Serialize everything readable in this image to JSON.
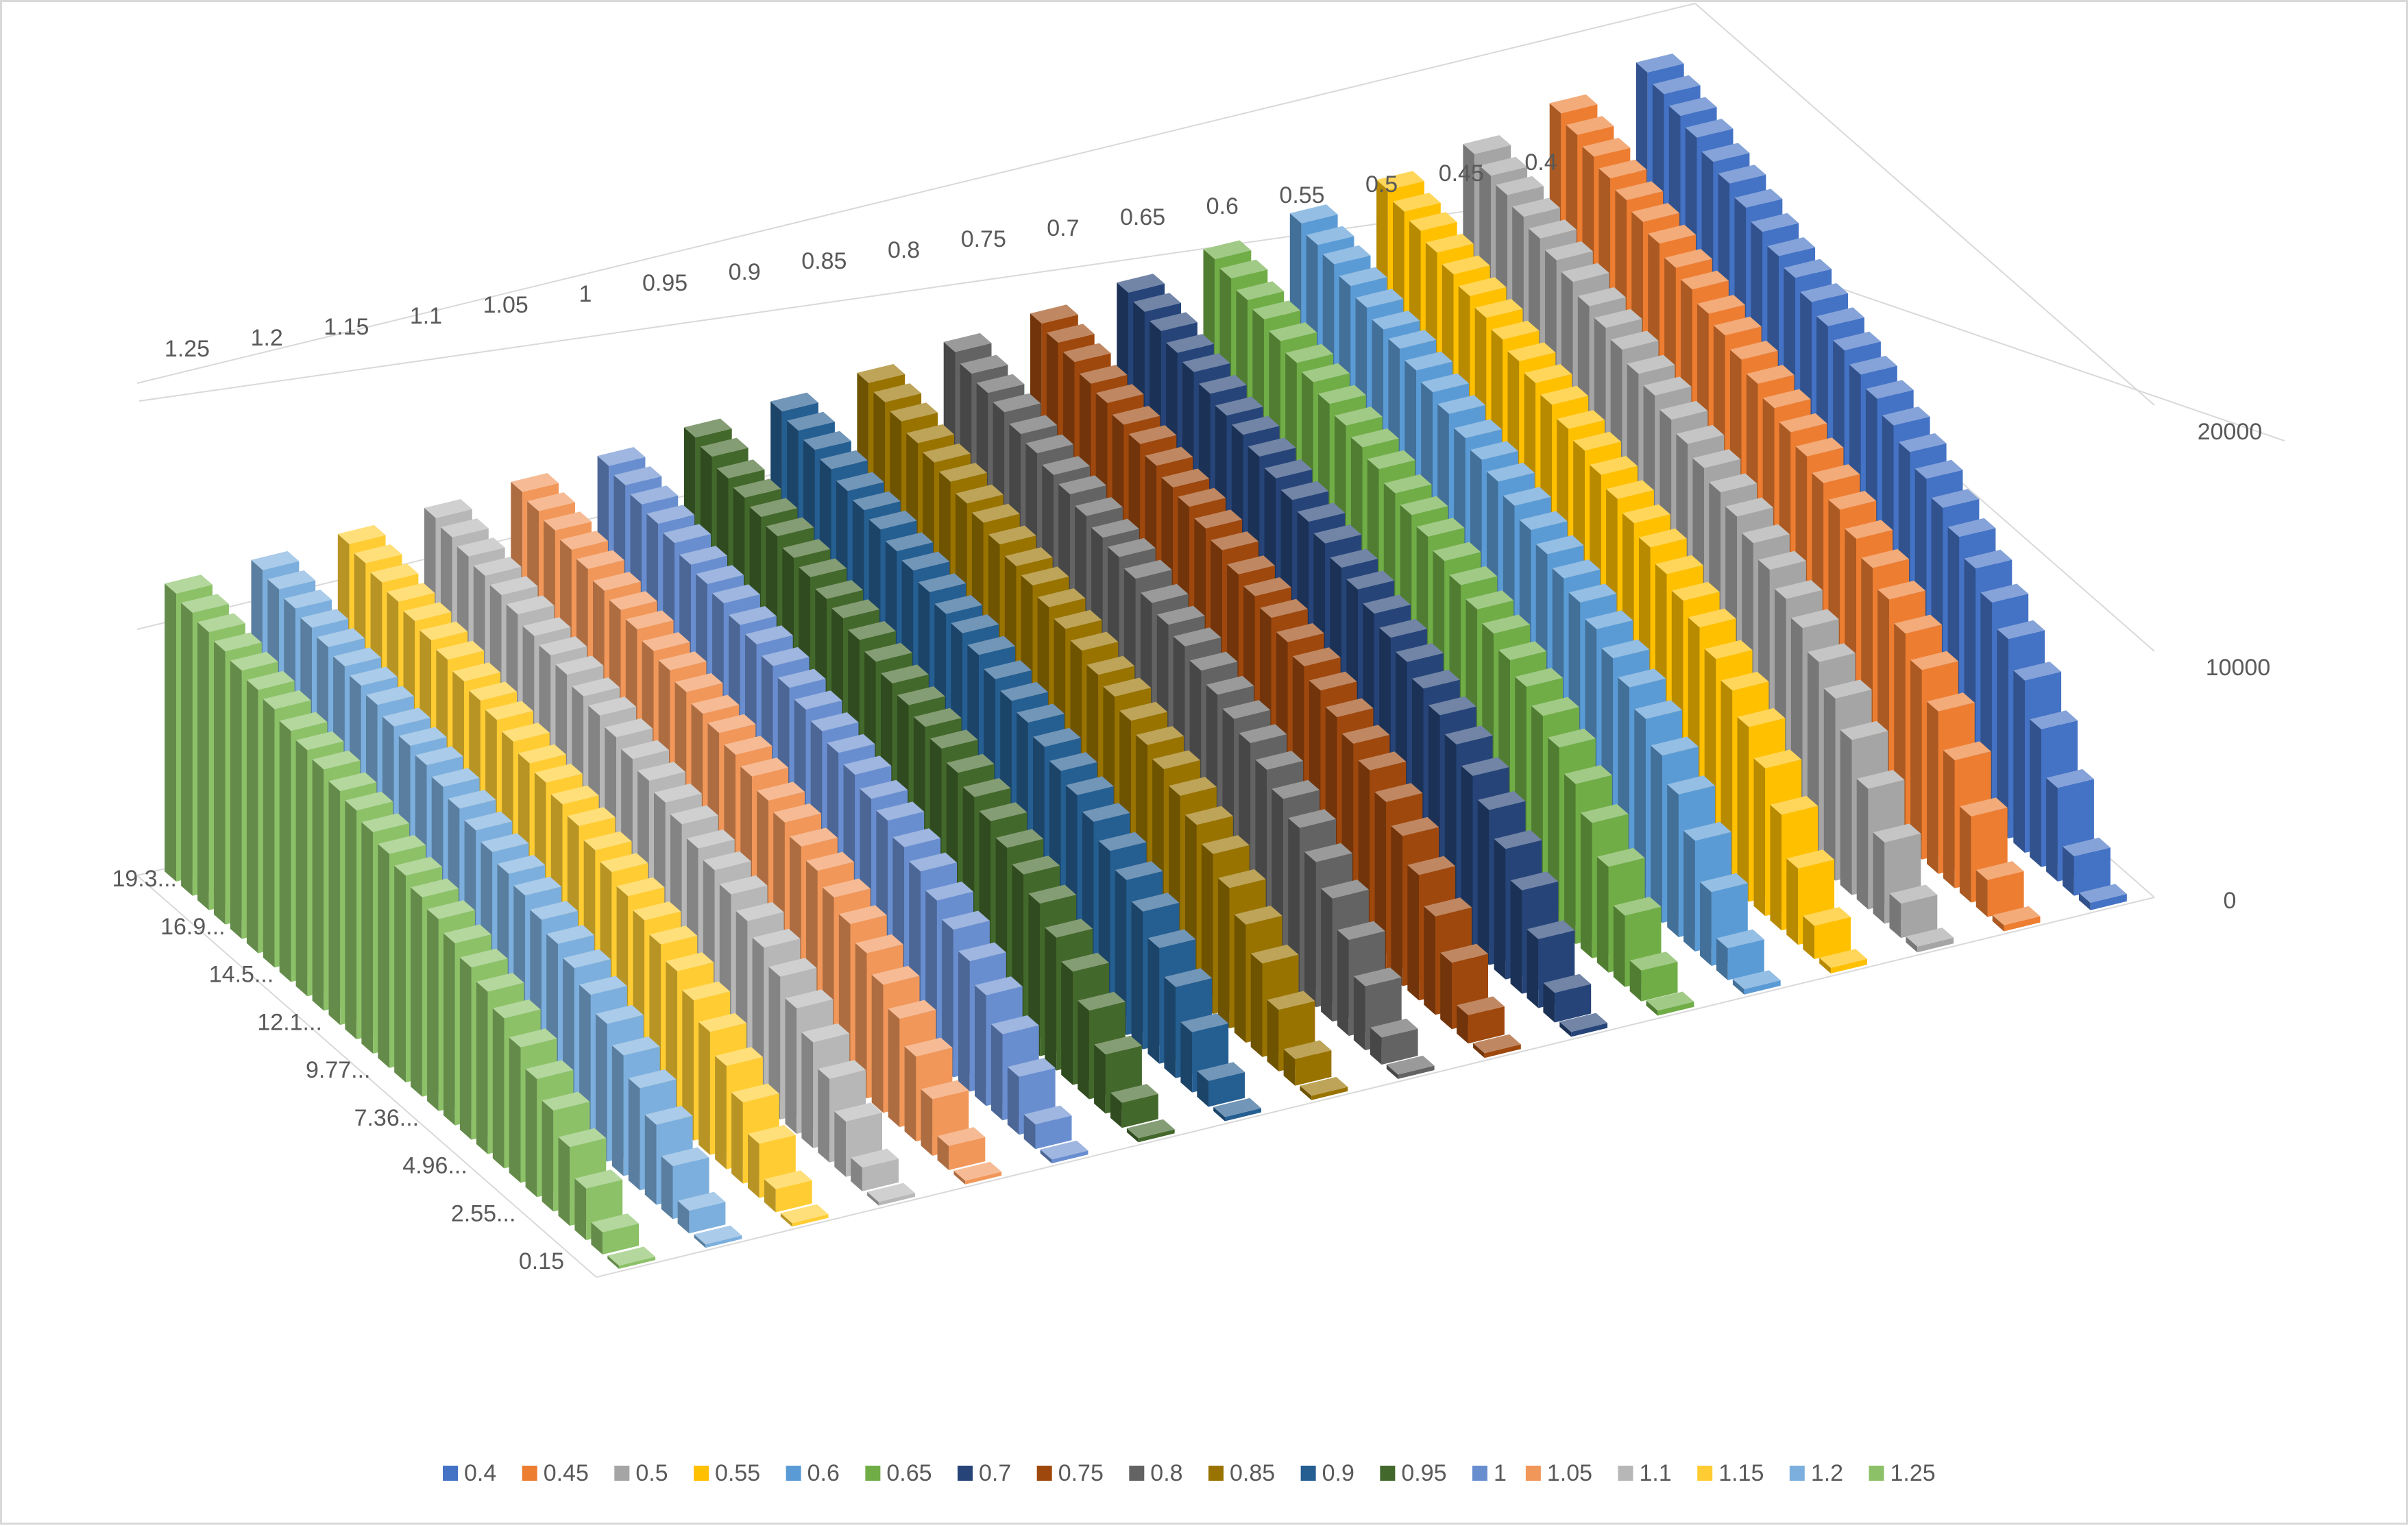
{
  "chart_data": {
    "type": "bar",
    "subtype": "3d-column",
    "title": "",
    "grid": true,
    "legend_position": "bottom",
    "axes": {
      "depth": {
        "label": "",
        "tick_labels": [
          "1.25",
          "1.2",
          "1.15",
          "1.1",
          "1.05",
          "1",
          "0.95",
          "0.9",
          "0.85",
          "0.8",
          "0.75",
          "0.7",
          "0.65",
          "0.6",
          "0.55",
          "0.5",
          "0.45",
          "0.4"
        ]
      },
      "category": {
        "label": "",
        "tick_labels": [
          "19.3...",
          "16.9...",
          "14.5...",
          "12.1...",
          "9.77...",
          "7.36...",
          "4.96...",
          "2.55...",
          "0.15"
        ]
      },
      "value": {
        "label": "",
        "ticks": [
          0,
          10000,
          20000
        ],
        "range": [
          0,
          22000
        ]
      }
    },
    "category_count": 28,
    "category_range": [
      0.15,
      19.3
    ],
    "series": [
      {
        "name": "0.4",
        "color": "#4472C4",
        "values": [
          300,
          1600,
          3800,
          5600,
          7000,
          8100,
          9000,
          9800,
          10500,
          11100,
          11700,
          12200,
          12700,
          13200,
          13600,
          14000,
          14400,
          14800,
          15200,
          15500,
          15900,
          16300,
          16700,
          17000,
          17400,
          17700,
          18000,
          18300
        ]
      },
      {
        "name": "0.45",
        "color": "#ED7D31",
        "values": [
          250,
          1500,
          3500,
          5200,
          6600,
          7700,
          8600,
          9400,
          10100,
          10700,
          11300,
          11800,
          12300,
          12700,
          13100,
          13500,
          13900,
          14300,
          14600,
          15000,
          15300,
          15700,
          16000,
          16300,
          16600,
          16900,
          17200,
          17500
        ]
      },
      {
        "name": "0.5",
        "color": "#A5A5A5",
        "values": [
          240,
          1400,
          3300,
          4900,
          6300,
          7400,
          8300,
          9100,
          9700,
          10300,
          10800,
          11300,
          11700,
          12100,
          12500,
          12900,
          13300,
          13600,
          14000,
          14300,
          14600,
          15000,
          15300,
          15600,
          15900,
          16200,
          16400,
          16700
        ]
      },
      {
        "name": "0.55",
        "color": "#FFC000",
        "values": [
          230,
          1350,
          3100,
          4700,
          6000,
          7100,
          8000,
          8700,
          9400,
          9900,
          10400,
          10900,
          11300,
          11700,
          12100,
          12500,
          12800,
          13200,
          13500,
          13800,
          14100,
          14400,
          14700,
          15000,
          15300,
          15600,
          15800,
          16100
        ]
      },
      {
        "name": "0.6",
        "color": "#5B9BD5",
        "values": [
          220,
          1300,
          3000,
          4500,
          5800,
          6800,
          7700,
          8400,
          9000,
          9600,
          10100,
          10500,
          10900,
          11300,
          11700,
          12100,
          12400,
          12700,
          13100,
          13400,
          13700,
          14000,
          14200,
          14500,
          14800,
          15100,
          15300,
          15600
        ]
      },
      {
        "name": "0.65",
        "color": "#70AD47",
        "values": [
          210,
          1250,
          2900,
          4300,
          5500,
          6500,
          7400,
          8100,
          8700,
          9200,
          9700,
          10100,
          10500,
          10900,
          11300,
          11600,
          11900,
          12300,
          12600,
          12900,
          13200,
          13500,
          13700,
          14000,
          14300,
          14500,
          14800,
          15000
        ]
      },
      {
        "name": "0.7",
        "color": "#264478",
        "values": [
          200,
          1200,
          2800,
          4200,
          5300,
          6300,
          7100,
          7800,
          8400,
          8900,
          9400,
          9800,
          10200,
          10600,
          10900,
          11300,
          11600,
          11900,
          12200,
          12500,
          12800,
          13000,
          13300,
          13600,
          13800,
          14100,
          14300,
          14500
        ]
      },
      {
        "name": "0.75",
        "color": "#9E480E",
        "values": [
          190,
          1150,
          2700,
          4000,
          5100,
          6100,
          6900,
          7600,
          8100,
          8600,
          9100,
          9500,
          9900,
          10300,
          10600,
          10900,
          11300,
          11600,
          11900,
          12100,
          12400,
          12700,
          12900,
          13200,
          13400,
          13700,
          13900,
          14100
        ]
      },
      {
        "name": "0.8",
        "color": "#636363",
        "values": [
          180,
          1100,
          2600,
          3900,
          5000,
          5900,
          6700,
          7300,
          7900,
          8400,
          8800,
          9200,
          9600,
          10000,
          10300,
          10600,
          11000,
          11300,
          11500,
          11800,
          12100,
          12300,
          12600,
          12800,
          13100,
          13300,
          13500,
          13800
        ]
      },
      {
        "name": "0.85",
        "color": "#997300",
        "values": [
          175,
          1080,
          2500,
          3800,
          4800,
          5700,
          6500,
          7100,
          7700,
          8200,
          8600,
          9000,
          9400,
          9700,
          10100,
          10400,
          10700,
          11000,
          11200,
          11500,
          11800,
          12000,
          12300,
          12500,
          12700,
          13000,
          13200,
          13400
        ]
      },
      {
        "name": "0.9",
        "color": "#255E91",
        "values": [
          170,
          1050,
          2450,
          3700,
          4700,
          5600,
          6300,
          6900,
          7500,
          8000,
          8400,
          8800,
          9200,
          9500,
          9800,
          10200,
          10500,
          10700,
          11000,
          11300,
          11500,
          11800,
          12000,
          12200,
          12500,
          12700,
          12900,
          13100
        ]
      },
      {
        "name": "0.95",
        "color": "#43682B",
        "values": [
          165,
          1020,
          2400,
          3600,
          4600,
          5400,
          6200,
          6800,
          7300,
          7800,
          8200,
          8600,
          9000,
          9300,
          9600,
          9900,
          10200,
          10500,
          10800,
          11000,
          11300,
          11500,
          11800,
          12000,
          12200,
          12400,
          12700,
          12900
        ]
      },
      {
        "name": "1",
        "color": "#698ED0",
        "values": [
          160,
          1000,
          2350,
          3500,
          4500,
          5300,
          6000,
          6600,
          7200,
          7600,
          8100,
          8400,
          8800,
          9100,
          9400,
          9700,
          10000,
          10300,
          10600,
          10800,
          11100,
          11300,
          11500,
          11800,
          12000,
          12200,
          12400,
          12600
        ]
      },
      {
        "name": "1.05",
        "color": "#F1975A",
        "values": [
          155,
          980,
          2300,
          3450,
          4400,
          5200,
          5900,
          6500,
          7000,
          7500,
          7900,
          8300,
          8600,
          9000,
          9300,
          9600,
          9800,
          10100,
          10400,
          10600,
          10900,
          11100,
          11300,
          11600,
          11800,
          12000,
          12200,
          12400
        ]
      },
      {
        "name": "1.1",
        "color": "#B7B7B7",
        "values": [
          150,
          960,
          2250,
          3400,
          4300,
          5100,
          5800,
          6400,
          6900,
          7400,
          7800,
          8100,
          8500,
          8800,
          9100,
          9400,
          9700,
          10000,
          10200,
          10500,
          10700,
          10900,
          11200,
          11400,
          11600,
          11800,
          12000,
          12200
        ]
      },
      {
        "name": "1.15",
        "color": "#FFCD33",
        "values": [
          145,
          940,
          2200,
          3300,
          4200,
          5000,
          5700,
          6300,
          6800,
          7200,
          7600,
          8000,
          8300,
          8700,
          9000,
          9300,
          9500,
          9800,
          10100,
          10300,
          10500,
          10800,
          11000,
          11200,
          11400,
          11600,
          11800,
          12000
        ]
      },
      {
        "name": "1.2",
        "color": "#7CAFDD",
        "values": [
          140,
          920,
          2150,
          3250,
          4150,
          4900,
          5600,
          6200,
          6700,
          7100,
          7500,
          7900,
          8200,
          8500,
          8800,
          9100,
          9400,
          9700,
          9900,
          10100,
          10400,
          10600,
          10800,
          11000,
          11200,
          11400,
          11600,
          11800
        ]
      },
      {
        "name": "1.25",
        "color": "#8CC168",
        "values": [
          135,
          900,
          2100,
          3200,
          4100,
          4800,
          5500,
          6100,
          6600,
          7000,
          7400,
          7800,
          8100,
          8400,
          8700,
          9000,
          9300,
          9500,
          9800,
          10000,
          10200,
          10500,
          10700,
          10900,
          11100,
          11300,
          11500,
          11700
        ]
      }
    ]
  }
}
